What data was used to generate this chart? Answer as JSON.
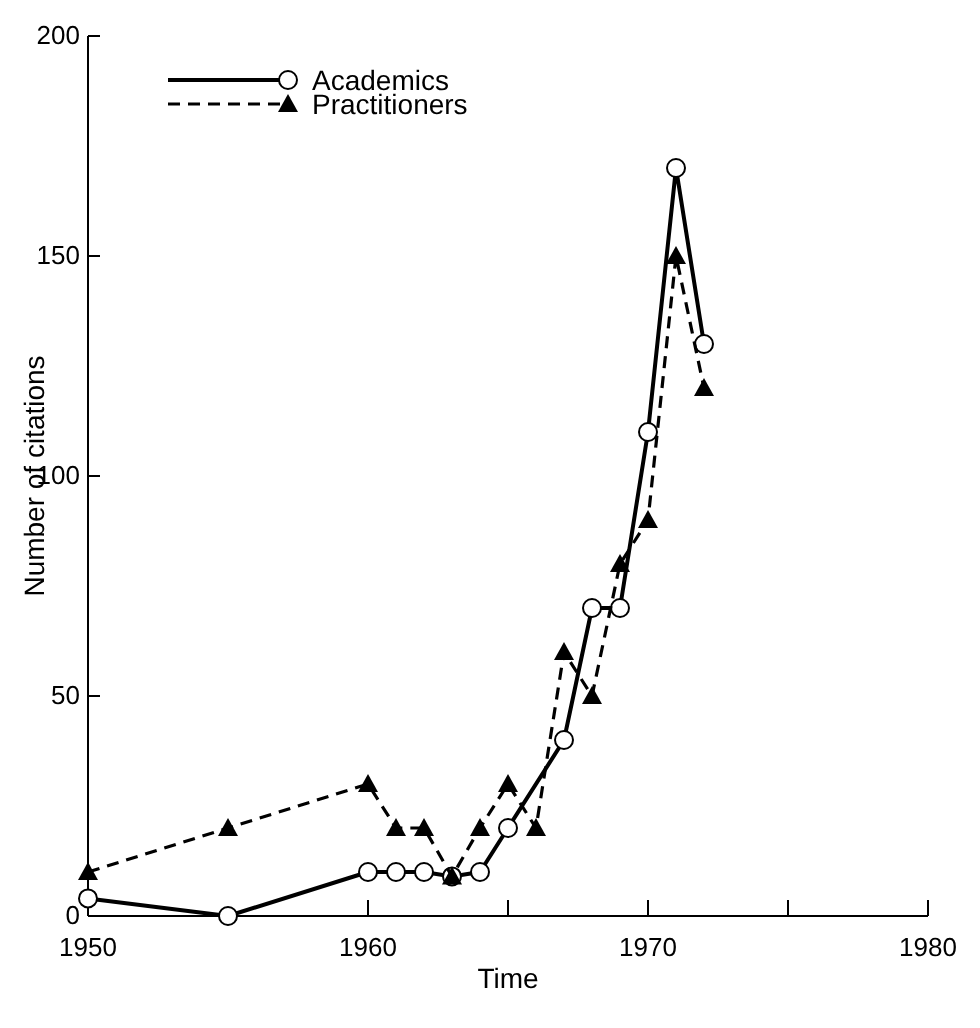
{
  "chart_data": {
    "type": "line",
    "xlabel": "Time",
    "ylabel": "Number of citations",
    "xlim": [
      1950,
      1980
    ],
    "xticks": [
      1950,
      1960,
      {
        "value": 1965,
        "label": null
      },
      1970,
      {
        "value": 1975,
        "label": null
      },
      1980
    ],
    "ylim": [
      0,
      200
    ],
    "yticks": [
      0,
      50,
      100,
      150,
      200
    ],
    "grid": false,
    "legend": "top left",
    "series": [
      {
        "name": "Academics",
        "color": "#000000",
        "marker": "circle",
        "line_style": "solid",
        "x": [
          1950,
          1955,
          1960,
          1961,
          1962,
          1963,
          1964,
          1965,
          1967,
          1968,
          1969,
          1970,
          1971,
          1972
        ],
        "values": [
          4,
          0,
          10,
          10,
          10,
          9,
          10,
          20,
          40,
          70,
          70,
          110,
          170,
          130
        ]
      },
      {
        "name": "Practitioners",
        "color": "#000000",
        "marker": "triangle",
        "line_style": "dashed",
        "x": [
          1950,
          1955,
          1960,
          1961,
          1962,
          1963,
          1964,
          1965,
          1966,
          1967,
          1968,
          1969,
          1970,
          1971,
          1972
        ],
        "values": [
          10,
          20,
          30,
          20,
          20,
          9,
          20,
          30,
          20,
          60,
          50,
          80,
          90,
          150,
          120
        ]
      }
    ]
  }
}
